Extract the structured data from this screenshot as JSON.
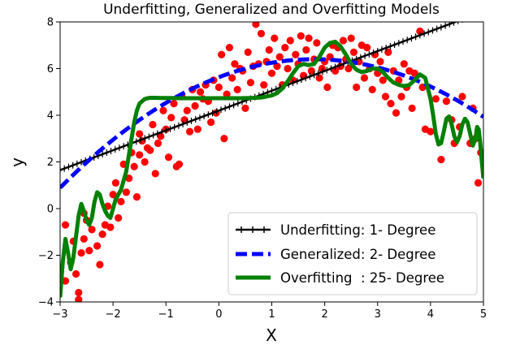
{
  "chart_data": {
    "type": "scatter",
    "title": "Underfitting, Generalized and Overfitting Models",
    "xlabel": "X",
    "ylabel": "y",
    "xlim": [
      -3,
      5
    ],
    "ylim": [
      -4,
      8
    ],
    "xticks": [
      -3,
      -2,
      -1,
      0,
      1,
      2,
      3,
      4,
      5
    ],
    "yticks": [
      -4,
      -2,
      0,
      2,
      4,
      6,
      8
    ],
    "grid": false,
    "legend_position": "lower-right",
    "colors": {
      "points": "#ff0000",
      "underfit": "#000000",
      "generalized": "#0000ff",
      "overfit": "#008000"
    },
    "scatter_points": [
      [
        -2.9,
        -0.7
      ],
      [
        -2.9,
        -3.1
      ],
      [
        -2.8,
        -2.3
      ],
      [
        -2.75,
        -1.4
      ],
      [
        -2.7,
        -2.8
      ],
      [
        -2.65,
        -3.6
      ],
      [
        -2.65,
        -3.9
      ],
      [
        -2.6,
        -1.9
      ],
      [
        -2.55,
        -1.3
      ],
      [
        -2.55,
        -0.2
      ],
      [
        -2.5,
        -0.5
      ],
      [
        -2.45,
        -1.8
      ],
      [
        -2.4,
        -0.9
      ],
      [
        -2.3,
        -1.6
      ],
      [
        -2.25,
        -2.4
      ],
      [
        -2.2,
        -1.1
      ],
      [
        -2.15,
        -0.7
      ],
      [
        -2.1,
        0.1
      ],
      [
        -2.05,
        -0.8
      ],
      [
        -2.0,
        0.6
      ],
      [
        -1.95,
        1.1
      ],
      [
        -1.9,
        -0.4
      ],
      [
        -1.85,
        0.3
      ],
      [
        -1.8,
        1.9
      ],
      [
        -1.75,
        0.7
      ],
      [
        -1.7,
        1.3
      ],
      [
        -1.65,
        2.4
      ],
      [
        -1.6,
        1.8
      ],
      [
        -1.55,
        0.5
      ],
      [
        -1.5,
        2.3
      ],
      [
        -1.5,
        3.2
      ],
      [
        -1.45,
        2.9
      ],
      [
        -1.4,
        2.0
      ],
      [
        -1.35,
        2.6
      ],
      [
        -1.3,
        2.5
      ],
      [
        -1.25,
        3.6
      ],
      [
        -1.2,
        1.5
      ],
      [
        -1.15,
        2.8
      ],
      [
        -1.1,
        3.1
      ],
      [
        -1.05,
        4.2
      ],
      [
        -1.0,
        3.4
      ],
      [
        -0.95,
        2.2
      ],
      [
        -0.9,
        3.9
      ],
      [
        -0.85,
        4.5
      ],
      [
        -0.8,
        1.8
      ],
      [
        -0.75,
        1.9
      ],
      [
        -0.7,
        4.8
      ],
      [
        -0.65,
        3.8
      ],
      [
        -0.6,
        4.2
      ],
      [
        -0.55,
        3.3
      ],
      [
        -0.5,
        5.1
      ],
      [
        -0.45,
        4.4
      ],
      [
        -0.4,
        3.4
      ],
      [
        -0.35,
        5.0
      ],
      [
        -0.3,
        4.7
      ],
      [
        -0.25,
        5.3
      ],
      [
        -0.2,
        4.6
      ],
      [
        -0.15,
        3.7
      ],
      [
        -0.1,
        5.5
      ],
      [
        -0.05,
        4.1
      ],
      [
        0.0,
        5.2
      ],
      [
        0.05,
        6.6
      ],
      [
        0.1,
        3.0
      ],
      [
        0.15,
        4.9
      ],
      [
        0.2,
        6.9
      ],
      [
        0.25,
        5.6
      ],
      [
        0.3,
        6.2
      ],
      [
        0.35,
        5.1
      ],
      [
        0.4,
        6.0
      ],
      [
        0.45,
        5.9
      ],
      [
        0.5,
        4.3
      ],
      [
        0.55,
        6.7
      ],
      [
        0.6,
        5.4
      ],
      [
        0.65,
        6.1
      ],
      [
        0.7,
        7.9
      ],
      [
        0.75,
        6.2
      ],
      [
        0.8,
        7.5
      ],
      [
        0.85,
        5.3
      ],
      [
        0.9,
        6.3
      ],
      [
        0.95,
        6.8
      ],
      [
        1.0,
        5.8
      ],
      [
        1.05,
        7.3
      ],
      [
        1.1,
        6.1
      ],
      [
        1.15,
        6.5
      ],
      [
        1.2,
        5.3
      ],
      [
        1.25,
        6.9
      ],
      [
        1.3,
        6.0
      ],
      [
        1.35,
        7.2
      ],
      [
        1.4,
        5.5
      ],
      [
        1.45,
        6.6
      ],
      [
        1.5,
        6.2
      ],
      [
        1.55,
        7.4
      ],
      [
        1.6,
        5.7
      ],
      [
        1.65,
        6.8
      ],
      [
        1.7,
        7.3
      ],
      [
        1.75,
        5.9
      ],
      [
        1.8,
        6.4
      ],
      [
        1.85,
        7.1
      ],
      [
        1.9,
        5.6
      ],
      [
        1.95,
        6.0
      ],
      [
        2.0,
        6.3
      ],
      [
        2.05,
        5.2
      ],
      [
        2.1,
        6.5
      ],
      [
        2.15,
        7.0
      ],
      [
        2.2,
        5.9
      ],
      [
        2.25,
        6.9
      ],
      [
        2.3,
        6.1
      ],
      [
        2.35,
        7.2
      ],
      [
        2.4,
        6.4
      ],
      [
        2.45,
        6.0
      ],
      [
        2.5,
        7.3
      ],
      [
        2.55,
        6.7
      ],
      [
        2.6,
        5.2
      ],
      [
        2.65,
        6.3
      ],
      [
        2.7,
        7.0
      ],
      [
        2.75,
        5.6
      ],
      [
        2.8,
        6.9
      ],
      [
        2.85,
        6.0
      ],
      [
        2.9,
        5.1
      ],
      [
        2.95,
        6.6
      ],
      [
        3.0,
        5.8
      ],
      [
        3.05,
        6.3
      ],
      [
        3.1,
        5.5
      ],
      [
        3.15,
        4.8
      ],
      [
        3.2,
        6.7
      ],
      [
        3.25,
        4.5
      ],
      [
        3.3,
        5.9
      ],
      [
        3.35,
        4.1
      ],
      [
        3.4,
        5.5
      ],
      [
        3.45,
        4.8
      ],
      [
        3.5,
        6.2
      ],
      [
        3.55,
        5.2
      ],
      [
        3.6,
        5.9
      ],
      [
        3.65,
        4.3
      ],
      [
        3.7,
        5.8
      ],
      [
        3.8,
        7.6
      ],
      [
        3.85,
        5.2
      ],
      [
        3.9,
        3.4
      ],
      [
        4.0,
        3.3
      ],
      [
        4.1,
        4.7
      ],
      [
        4.2,
        2.1
      ],
      [
        4.3,
        4.6
      ],
      [
        4.4,
        3.8
      ],
      [
        4.45,
        2.8
      ],
      [
        4.55,
        3.5
      ],
      [
        4.6,
        4.8
      ],
      [
        4.75,
        2.8
      ],
      [
        4.8,
        4.3
      ],
      [
        4.85,
        3.0
      ],
      [
        4.9,
        1.1
      ],
      [
        4.95,
        2.4
      ]
    ],
    "series": [
      {
        "name": "Underfitting: 1- Degree",
        "kind": "linear",
        "coeffs": [
          4.2,
          0.85
        ]
      },
      {
        "name": "Generalized: 2- Degree",
        "kind": "quadratic",
        "coeffs": [
          5.63,
          0.86,
          -0.24
        ]
      },
      {
        "name": "Overfitting  : 25- Degree",
        "kind": "sampled",
        "x": [
          -3.0,
          -2.95,
          -2.9,
          -2.85,
          -2.8,
          -2.75,
          -2.7,
          -2.65,
          -2.6,
          -2.55,
          -2.5,
          -2.45,
          -2.4,
          -2.35,
          -2.3,
          -2.25,
          -2.2,
          -2.15,
          -2.1,
          -2.05,
          -2.0,
          -1.95,
          -1.9,
          -1.85,
          -1.8,
          -1.75,
          -1.7,
          -1.65,
          -1.6,
          -1.55,
          -1.5,
          -1.4,
          -1.3,
          -1.2,
          -1.1,
          -1.0,
          -0.9,
          -0.8,
          -0.6,
          -0.4,
          -0.2,
          0.0,
          0.2,
          0.4,
          0.6,
          0.8,
          1.0,
          1.1,
          1.2,
          1.3,
          1.4,
          1.5,
          1.6,
          1.7,
          1.8,
          1.9,
          2.0,
          2.1,
          2.2,
          2.3,
          2.4,
          2.5,
          2.6,
          2.7,
          2.8,
          2.9,
          3.0,
          3.1,
          3.2,
          3.3,
          3.4,
          3.5,
          3.6,
          3.7,
          3.8,
          3.9,
          4.0,
          4.05,
          4.1,
          4.15,
          4.2,
          4.25,
          4.3,
          4.35,
          4.4,
          4.45,
          4.5,
          4.55,
          4.6,
          4.65,
          4.7,
          4.75,
          4.8,
          4.85,
          4.88,
          4.91,
          4.94,
          4.97,
          5.0
        ],
        "y": [
          -3.8,
          -2.3,
          -1.3,
          -1.9,
          -2.6,
          -2.1,
          -1.2,
          -0.3,
          0.2,
          -0.1,
          -0.5,
          -0.7,
          -0.4,
          0.3,
          0.7,
          0.6,
          0.2,
          -0.1,
          -0.3,
          -0.4,
          0.0,
          0.4,
          0.6,
          0.8,
          1.2,
          1.6,
          2.3,
          3.0,
          3.7,
          4.2,
          4.5,
          4.7,
          4.75,
          4.75,
          4.74,
          4.74,
          4.74,
          4.73,
          4.73,
          4.73,
          4.73,
          4.73,
          4.73,
          4.73,
          4.74,
          4.76,
          4.85,
          4.95,
          5.15,
          5.45,
          5.8,
          6.1,
          6.2,
          6.15,
          6.2,
          6.5,
          6.9,
          7.1,
          7.15,
          6.95,
          6.6,
          6.2,
          5.95,
          5.85,
          5.9,
          6.0,
          6.0,
          5.85,
          5.6,
          5.4,
          5.3,
          5.25,
          5.3,
          5.5,
          5.75,
          5.6,
          4.7,
          4.0,
          3.2,
          2.75,
          2.8,
          3.3,
          3.85,
          3.95,
          3.6,
          3.1,
          2.85,
          3.1,
          3.6,
          3.85,
          3.7,
          3.2,
          2.7,
          3.0,
          3.5,
          3.4,
          2.8,
          2.0,
          1.3
        ]
      }
    ]
  }
}
